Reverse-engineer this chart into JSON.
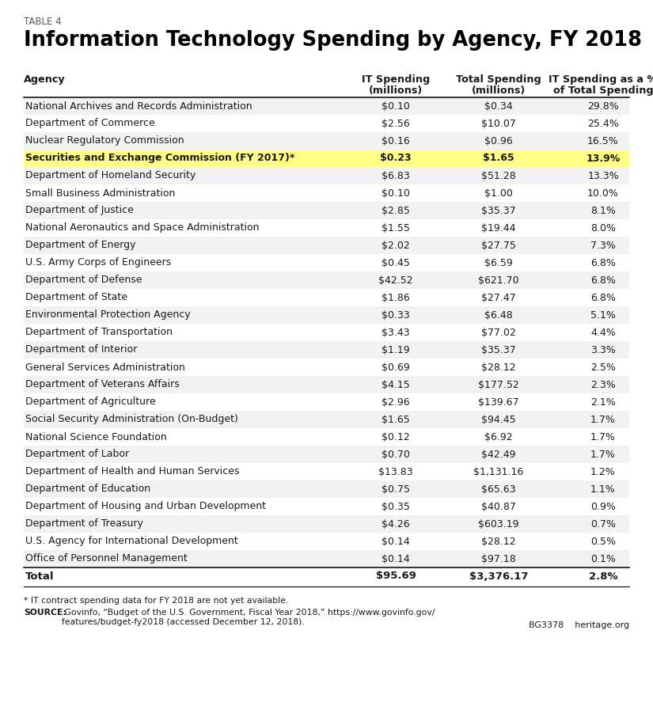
{
  "table_label": "TABLE 4",
  "title": "Information Technology Spending by Agency, FY 2018",
  "rows": [
    [
      "National Archives and Records Administration",
      "$0.10",
      "$0.34",
      "29.8%"
    ],
    [
      "Department of Commerce",
      "$2.56",
      "$10.07",
      "25.4%"
    ],
    [
      "Nuclear Regulatory Commission",
      "$0.16",
      "$0.96",
      "16.5%"
    ],
    [
      "Securities and Exchange Commission (FY 2017)*",
      "$0.23",
      "$1.65",
      "13.9%"
    ],
    [
      "Department of Homeland Security",
      "$6.83",
      "$51.28",
      "13.3%"
    ],
    [
      "Small Business Administration",
      "$0.10",
      "$1.00",
      "10.0%"
    ],
    [
      "Department of Justice",
      "$2.85",
      "$35.37",
      "8.1%"
    ],
    [
      "National Aeronautics and Space Administration",
      "$1.55",
      "$19.44",
      "8.0%"
    ],
    [
      "Department of Energy",
      "$2.02",
      "$27.75",
      "7.3%"
    ],
    [
      "U.S. Army Corps of Engineers",
      "$0.45",
      "$6.59",
      "6.8%"
    ],
    [
      "Department of Defense",
      "$42.52",
      "$621.70",
      "6.8%"
    ],
    [
      "Department of State",
      "$1.86",
      "$27.47",
      "6.8%"
    ],
    [
      "Environmental Protection Agency",
      "$0.33",
      "$6.48",
      "5.1%"
    ],
    [
      "Department of Transportation",
      "$3.43",
      "$77.02",
      "4.4%"
    ],
    [
      "Department of Interior",
      "$1.19",
      "$35.37",
      "3.3%"
    ],
    [
      "General Services Administration",
      "$0.69",
      "$28.12",
      "2.5%"
    ],
    [
      "Department of Veterans Affairs",
      "$4.15",
      "$177.52",
      "2.3%"
    ],
    [
      "Department of Agriculture",
      "$2.96",
      "$139.67",
      "2.1%"
    ],
    [
      "Social Security Administration (On-Budget)",
      "$1.65",
      "$94.45",
      "1.7%"
    ],
    [
      "National Science Foundation",
      "$0.12",
      "$6.92",
      "1.7%"
    ],
    [
      "Department of Labor",
      "$0.70",
      "$42.49",
      "1.7%"
    ],
    [
      "Department of Health and Human Services",
      "$13.83",
      "$1,131.16",
      "1.2%"
    ],
    [
      "Department of Education",
      "$0.75",
      "$65.63",
      "1.1%"
    ],
    [
      "Department of Housing and Urban Development",
      "$0.35",
      "$40.87",
      "0.9%"
    ],
    [
      "Department of Treasury",
      "$4.26",
      "$603.19",
      "0.7%"
    ],
    [
      "U.S. Agency for International Development",
      "$0.14",
      "$28.12",
      "0.5%"
    ],
    [
      "Office of Personnel Management",
      "$0.14",
      "$97.18",
      "0.1%"
    ]
  ],
  "total_row": [
    "Total",
    "$95.69",
    "$3,376.17",
    "2.8%"
  ],
  "highlight_row_index": 3,
  "highlight_color": "#FFFF88",
  "stripe_color": "#f2f2f2",
  "bg_color": "#ffffff",
  "text_color": "#1a1a1a",
  "footer_note": "* IT contract spending data for FY 2018 are not yet available.",
  "footer_source_bold": "SOURCE:",
  "footer_source_rest": " Govinfo, “Budget of the U.S. Government, Fiscal Year 2018,” https://www.govinfo.gov/\nfeatures/budget-fy2018 (accessed December 12, 2018).",
  "footer_right": "BG3378    heritage.org"
}
